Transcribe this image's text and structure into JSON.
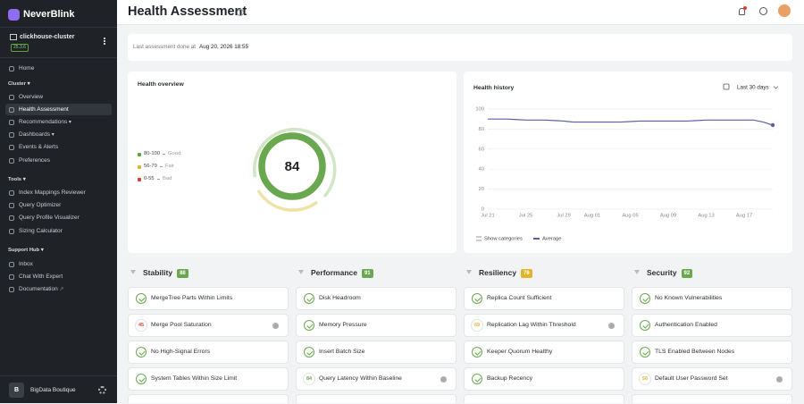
{
  "sidebar": {
    "brand": "NeverBlink",
    "cluster": "clickhouse-cluster",
    "version": "25.3.6",
    "home": "Home",
    "sections": [
      {
        "title": "Cluster",
        "items": [
          {
            "label": "Overview"
          },
          {
            "label": "Health Assessment",
            "active": true
          },
          {
            "label": "Recommendations",
            "expandable": true
          },
          {
            "label": "Dashboards",
            "expandable": true
          },
          {
            "label": "Events & Alerts"
          },
          {
            "label": "Preferences"
          }
        ]
      },
      {
        "title": "Tools",
        "items": [
          {
            "label": "Index Mappings Reviewer"
          },
          {
            "label": "Query Optimizer"
          },
          {
            "label": "Query Profile Visualizer"
          },
          {
            "label": "Sizing Calculator"
          }
        ]
      },
      {
        "title": "Support Hub",
        "items": [
          {
            "label": "Inbox"
          },
          {
            "label": "Chat With Expert"
          },
          {
            "label": "Documentation",
            "external": true
          }
        ]
      }
    ],
    "account": {
      "initial": "B",
      "name": "BigData Boutique"
    }
  },
  "header": {
    "title": "Health Assessment"
  },
  "banner": {
    "label": "Last assessment done at",
    "timestamp": "Aug 20, 2026 18:55"
  },
  "overview": {
    "title": "Health overview",
    "score": 84,
    "score_color": "#6aa84f",
    "legend": [
      {
        "range": "80-100",
        "label": "Good",
        "color": "#5aa33d"
      },
      {
        "range": "56-79",
        "label": "Fair",
        "color": "#e0b52a"
      },
      {
        "range": "0-55",
        "label": "Bad",
        "color": "#d9432f"
      }
    ]
  },
  "chart_data": {
    "type": "line",
    "title": "Health history",
    "range": "Last 30 days",
    "toggle": "Show categories",
    "categories": [
      "Jul 21",
      null,
      null,
      null,
      "Jul 25",
      null,
      null,
      null,
      "Jul 29",
      null,
      null,
      "Aug 01",
      null,
      null,
      null,
      "Aug 05",
      null,
      null,
      null,
      "Aug 09",
      null,
      null,
      null,
      "Aug 13",
      null,
      null,
      null,
      "Aug 17",
      null,
      null,
      null
    ],
    "series": [
      {
        "name": "Average",
        "color": "#5b5ea6",
        "values": [
          90,
          90,
          90,
          89.5,
          89,
          89,
          89,
          88.5,
          88,
          87,
          87,
          87,
          87,
          87,
          87,
          87.5,
          88,
          88,
          88,
          88,
          88,
          88,
          88.5,
          89,
          89,
          89,
          89,
          89,
          89,
          87,
          84
        ]
      }
    ],
    "ylim": [
      0,
      100
    ],
    "yticks": [
      0,
      20,
      40,
      60,
      80,
      100
    ],
    "grid": true
  },
  "categories": [
    {
      "name": "Stability",
      "score": 88,
      "color": "#6aa84f",
      "checks": [
        {
          "name": "MergeTree Parts Within Limits"
        },
        {
          "name": "Merge Pool Saturation",
          "score": 45,
          "color": "#d9432f"
        },
        {
          "name": "No High-Signal Errors"
        },
        {
          "name": "System Tables Within Size Limit"
        }
      ]
    },
    {
      "name": "Performance",
      "score": 91,
      "color": "#6aa84f",
      "checks": [
        {
          "name": "Disk Headroom"
        },
        {
          "name": "Memory Pressure"
        },
        {
          "name": "Insert Batch Size"
        },
        {
          "name": "Query Latency Within Baseline",
          "score": 84,
          "color": "#6aa84f"
        }
      ]
    },
    {
      "name": "Resiliency",
      "score": 76,
      "color": "#e0b52a",
      "checks": [
        {
          "name": "Replica Count Sufficient"
        },
        {
          "name": "Replication Lag Within Threshold",
          "score": 69,
          "color": "#e0b52a"
        },
        {
          "name": "Keeper Quorum Healthy"
        },
        {
          "name": "Backup Recency"
        }
      ]
    },
    {
      "name": "Security",
      "score": 92,
      "color": "#6aa84f",
      "checks": [
        {
          "name": "No Known Vulnerabilities"
        },
        {
          "name": "Authentication Enabled"
        },
        {
          "name": "TLS Enabled Between Nodes"
        },
        {
          "name": "Default User Password Set",
          "score": 56,
          "color": "#e0b52a"
        }
      ]
    }
  ]
}
